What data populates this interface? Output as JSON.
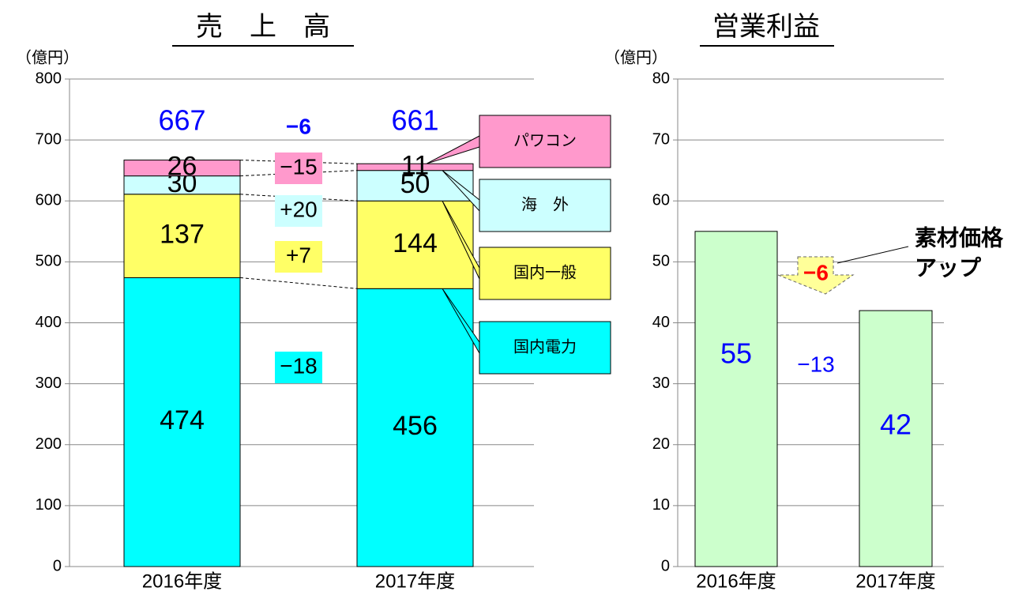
{
  "chart_data": [
    {
      "type": "stacked_bar",
      "title": "売　上　高",
      "y_label": "（億円）",
      "categories": [
        "2016年度",
        "2017年度"
      ],
      "series": [
        {
          "name": "国内電力",
          "color": "#00ffff",
          "values": [
            474,
            456
          ],
          "change": -18,
          "change_label": "−18"
        },
        {
          "name": "国内一般",
          "color": "#ffff66",
          "values": [
            137,
            144
          ],
          "change": 7,
          "change_label": "+7"
        },
        {
          "name": "海　外",
          "color": "#ccffff",
          "values": [
            30,
            50
          ],
          "change": 20,
          "change_label": "+20"
        },
        {
          "name": "パワコン",
          "color": "#ff99cc",
          "values": [
            26,
            11
          ],
          "change": -15,
          "change_label": "−15"
        }
      ],
      "totals": [
        667,
        661
      ],
      "total_change": -6,
      "total_change_label": "−6",
      "ylim": [
        0,
        800
      ],
      "yticks": [
        0,
        100,
        200,
        300,
        400,
        500,
        600,
        700,
        800
      ],
      "grid": true
    },
    {
      "type": "bar",
      "title": "営業利益",
      "y_label": "（億円）",
      "categories": [
        "2016年度",
        "2017年度"
      ],
      "values": [
        55,
        42
      ],
      "color": "#ccffcc",
      "change": -13,
      "change_label": "−13",
      "annotation": {
        "text": [
          "素材価格",
          "アップ"
        ],
        "value": -6,
        "label": "−6"
      },
      "ylim": [
        0,
        80
      ],
      "yticks": [
        0,
        10,
        20,
        30,
        40,
        50,
        60,
        70,
        80
      ],
      "grid": true
    }
  ]
}
